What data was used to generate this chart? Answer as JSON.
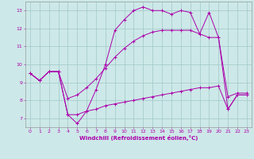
{
  "xlabel": "Windchill (Refroidissement éolien,°C)",
  "bg_color": "#cde8e8",
  "grid_color": "#a0c8c8",
  "line_color": "#aa00aa",
  "xlim": [
    -0.5,
    23.5
  ],
  "ylim": [
    6.5,
    13.5
  ],
  "xticks": [
    0,
    1,
    2,
    3,
    4,
    5,
    6,
    7,
    8,
    9,
    10,
    11,
    12,
    13,
    14,
    15,
    16,
    17,
    18,
    19,
    20,
    21,
    22,
    23
  ],
  "yticks": [
    7,
    8,
    9,
    10,
    11,
    12,
    13
  ],
  "line1_x": [
    0,
    1,
    2,
    3,
    4,
    5,
    6,
    7,
    8,
    9,
    10,
    11,
    12,
    13,
    14,
    15,
    16,
    17,
    18,
    19,
    20,
    21,
    22,
    23
  ],
  "line1_y": [
    9.5,
    9.1,
    9.6,
    9.6,
    7.2,
    6.7,
    7.4,
    8.6,
    10.0,
    11.9,
    12.5,
    13.0,
    13.2,
    13.0,
    13.0,
    12.8,
    13.0,
    12.9,
    11.7,
    12.9,
    11.5,
    7.5,
    8.3,
    8.3
  ],
  "line2_x": [
    0,
    1,
    2,
    3,
    4,
    5,
    6,
    7,
    8,
    9,
    10,
    11,
    12,
    13,
    14,
    15,
    16,
    17,
    18,
    19,
    20,
    21,
    22,
    23
  ],
  "line2_y": [
    9.5,
    9.1,
    9.6,
    9.6,
    8.1,
    8.3,
    8.7,
    9.2,
    9.8,
    10.4,
    10.9,
    11.3,
    11.6,
    11.8,
    11.9,
    11.9,
    11.9,
    11.9,
    11.7,
    11.5,
    11.5,
    8.2,
    8.4,
    8.4
  ],
  "line3_x": [
    0,
    1,
    2,
    3,
    4,
    5,
    6,
    7,
    8,
    9,
    10,
    11,
    12,
    13,
    14,
    15,
    16,
    17,
    18,
    19,
    20,
    21,
    22,
    23
  ],
  "line3_y": [
    9.5,
    9.1,
    9.6,
    9.6,
    7.2,
    7.2,
    7.4,
    7.5,
    7.7,
    7.8,
    7.9,
    8.0,
    8.1,
    8.2,
    8.3,
    8.4,
    8.5,
    8.6,
    8.7,
    8.7,
    8.8,
    7.5,
    8.3,
    8.3
  ]
}
